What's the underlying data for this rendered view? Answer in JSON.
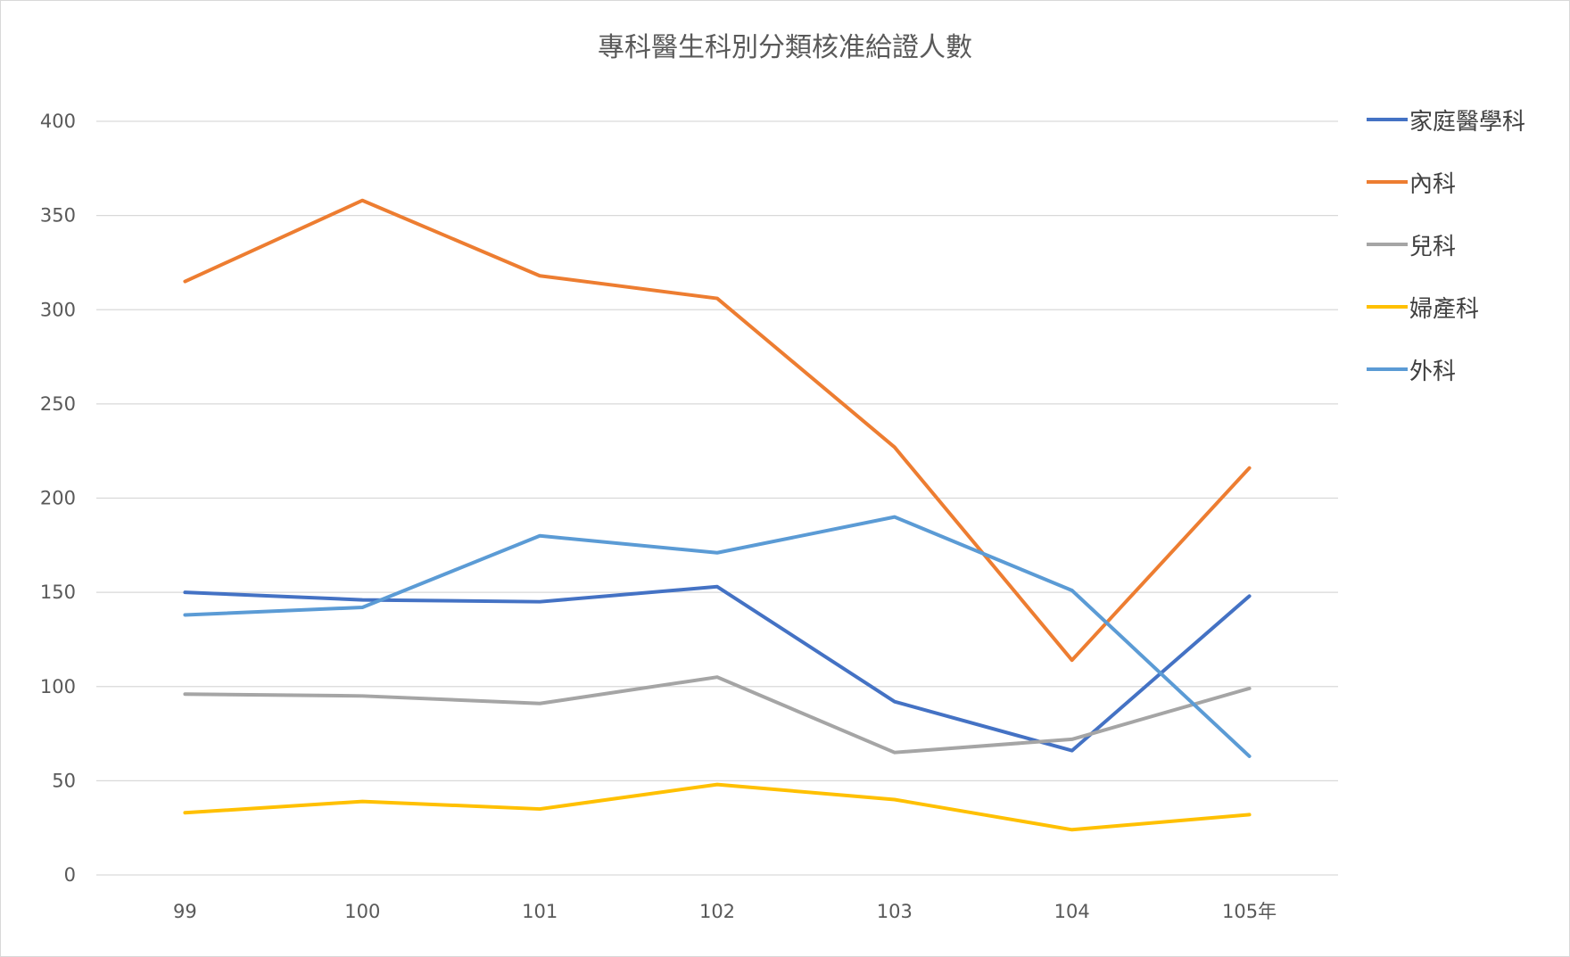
{
  "chart_data": {
    "type": "line",
    "title": "專科醫生科別分類核准給證人數",
    "xlabel": "",
    "ylabel": "",
    "categories": [
      "99",
      "100",
      "101",
      "102",
      "103",
      "104",
      "105年"
    ],
    "ylim": [
      0,
      400
    ],
    "yticks": [
      "0",
      "50",
      "100",
      "150",
      "200",
      "250",
      "300",
      "350",
      "400"
    ],
    "grid": true,
    "legend_position": "right",
    "series": [
      {
        "name": "家庭醫學科",
        "color": "#4472C4",
        "values": [
          150,
          146,
          145,
          153,
          92,
          66,
          148
        ]
      },
      {
        "name": "內科",
        "color": "#ED7D31",
        "values": [
          315,
          358,
          318,
          306,
          227,
          114,
          216
        ]
      },
      {
        "name": "兒科",
        "color": "#A5A5A5",
        "values": [
          96,
          95,
          91,
          105,
          65,
          72,
          99
        ]
      },
      {
        "name": "婦產科",
        "color": "#FFC000",
        "values": [
          33,
          39,
          35,
          48,
          40,
          24,
          32
        ]
      },
      {
        "name": "外科",
        "color": "#5B9BD5",
        "values": [
          138,
          142,
          180,
          171,
          190,
          151,
          63
        ]
      }
    ]
  }
}
